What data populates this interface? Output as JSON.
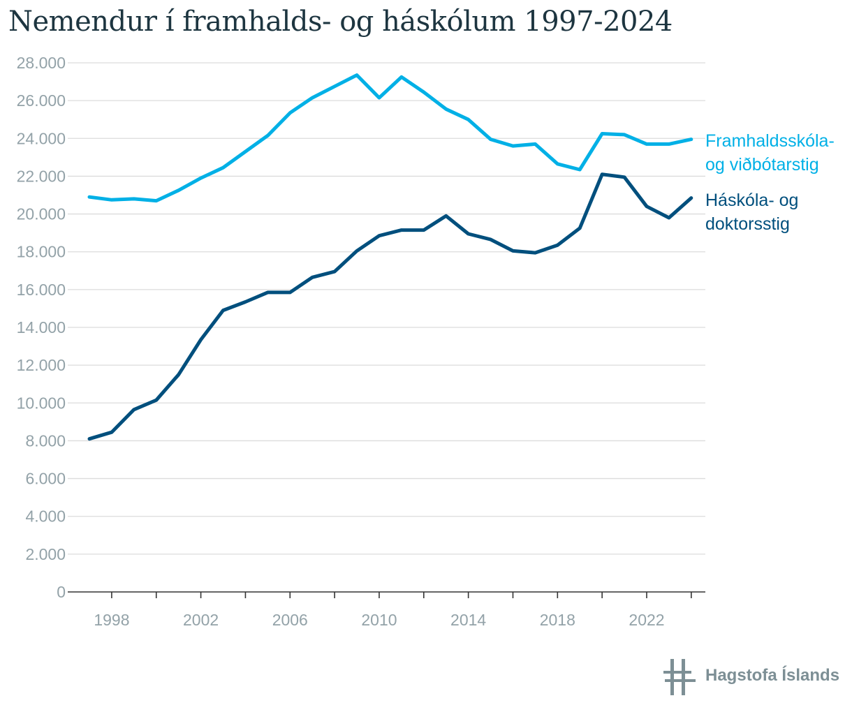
{
  "title": "Nemendur í framhalds- og háskólum 1997-2024",
  "brand": "Hagstofa Íslands",
  "chart_data": {
    "type": "line",
    "title": "Nemendur í framhalds- og háskólum 1997-2024",
    "xlabel": "",
    "ylabel": "",
    "xlim": [
      1997,
      2024
    ],
    "ylim": [
      0,
      28000
    ],
    "yticks": [
      0,
      2000,
      4000,
      6000,
      8000,
      10000,
      12000,
      14000,
      16000,
      18000,
      20000,
      22000,
      24000,
      26000,
      28000
    ],
    "ytick_labels": [
      "0",
      "2.000",
      "4.000",
      "6.000",
      "8.000",
      "10.000",
      "12.000",
      "14.000",
      "16.000",
      "18.000",
      "20.000",
      "22.000",
      "24.000",
      "26.000",
      "28.000"
    ],
    "xtick_labels": [
      "1998",
      "2002",
      "2006",
      "2010",
      "2014",
      "2018",
      "2022"
    ],
    "grid": true,
    "legend": "direct labels at right end of lines",
    "x": [
      1997,
      1998,
      1999,
      2000,
      2001,
      2002,
      2003,
      2004,
      2005,
      2006,
      2007,
      2008,
      2009,
      2010,
      2011,
      2012,
      2013,
      2014,
      2015,
      2016,
      2017,
      2018,
      2019,
      2020,
      2021,
      2022,
      2023,
      2024
    ],
    "series": [
      {
        "name": "Framhaldsskóla- og viðbótarstig",
        "label_lines": [
          "Framhaldsskóla-",
          "og viðbótarstig"
        ],
        "color": "#00b0e6",
        "values": [
          20900,
          20750,
          20800,
          20700,
          21250,
          21900,
          22450,
          23300,
          24150,
          25350,
          26150,
          26750,
          27350,
          26150,
          27250,
          26450,
          25550,
          25000,
          23950,
          23600,
          23700,
          22650,
          22350,
          24250,
          24200,
          23700,
          23700,
          23950
        ]
      },
      {
        "name": "Háskóla- og doktorsstig",
        "label_lines": [
          "Háskóla- og",
          "doktorsstig"
        ],
        "color": "#004f7d",
        "values": [
          8100,
          8450,
          9650,
          10150,
          11500,
          13350,
          14900,
          15350,
          15850,
          15850,
          16650,
          16950,
          18050,
          18850,
          19150,
          19150,
          19900,
          18950,
          18650,
          18050,
          17950,
          18350,
          19250,
          22100,
          21950,
          20400,
          19800,
          20850
        ]
      }
    ]
  }
}
